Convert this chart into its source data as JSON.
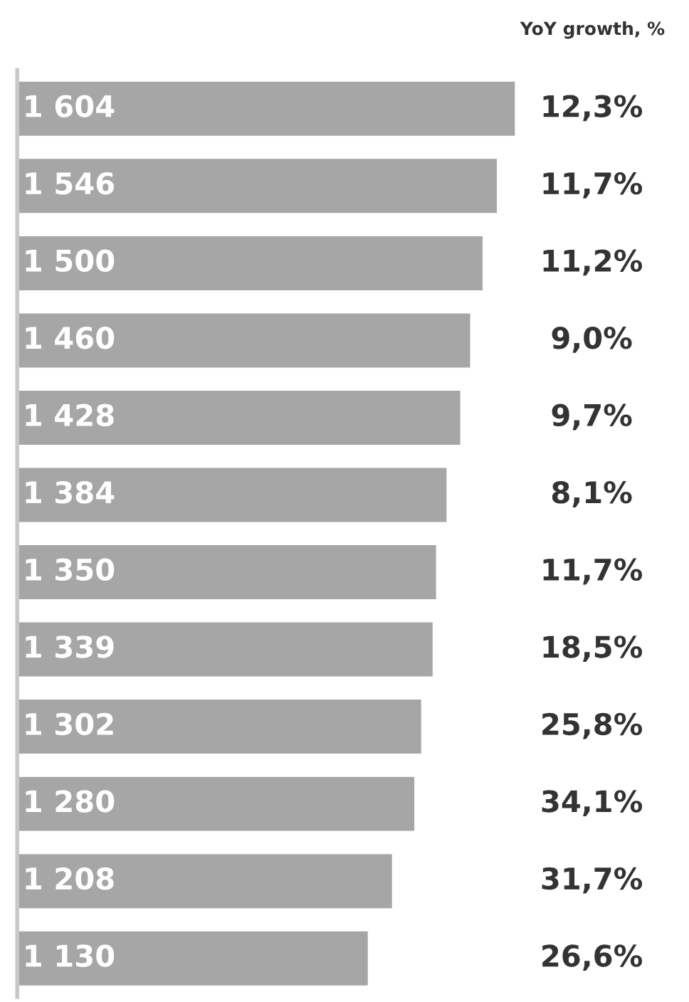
{
  "chart_data": {
    "type": "bar",
    "orientation": "horizontal",
    "categories": [
      null,
      null,
      null,
      null,
      null,
      null,
      null,
      null,
      null,
      null,
      null,
      null
    ],
    "values": [
      1604,
      1546,
      1500,
      1460,
      1428,
      1384,
      1350,
      1339,
      1302,
      1280,
      1208,
      1130
    ],
    "value_labels": [
      "1 604",
      "1 546",
      "1 500",
      "1 460",
      "1 428",
      "1 384",
      "1 350",
      "1 339",
      "1 302",
      "1 280",
      "1 208",
      "1 130"
    ],
    "color": "#a6a6a6",
    "grid": false,
    "legend": false,
    "annotations": [
      "YoY growth, %",
      "12,3%",
      "11,7%",
      "11,2%",
      "9,0%",
      "9,7%",
      "8,1%",
      "11,7%",
      "18,5%",
      "25,8%",
      "34,1%",
      "31,7%",
      "26,6%"
    ]
  }
}
